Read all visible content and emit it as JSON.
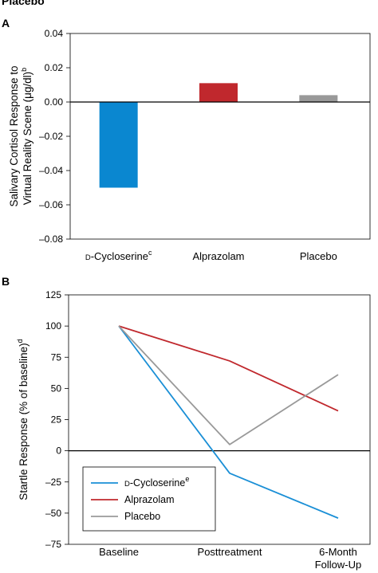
{
  "cropped_header": "Placebo",
  "chart_data": [
    {
      "type": "bar",
      "panel": "A",
      "categories": [
        {
          "label": "D-Cycloserine",
          "note": "c",
          "smallcap_prefix": "D",
          "rest": "-Cycloserine"
        },
        {
          "label": "Alprazolam",
          "note": "",
          "smallcap_prefix": "",
          "rest": "Alprazolam"
        },
        {
          "label": "Placebo",
          "note": "",
          "smallcap_prefix": "",
          "rest": "Placebo"
        }
      ],
      "values": [
        -0.05,
        0.011,
        0.004
      ],
      "colors": [
        "#0a87d0",
        "#c0282d",
        "#999999"
      ],
      "ylabel_line1": "Salivary Cortisol Response to",
      "ylabel_line2": "Virtual Reality Scene (μg/dl)",
      "ylabel_sup": "b",
      "ylim": [
        -0.08,
        0.04
      ],
      "yticks": [
        0.04,
        0.02,
        0.0,
        -0.02,
        -0.04,
        -0.06,
        -0.08
      ],
      "ytick_labels": [
        "0.04",
        "0.02",
        "0.00",
        "–0.02",
        "–0.04",
        "–0.06",
        "–0.08"
      ],
      "grid": false,
      "zero_line": true
    },
    {
      "type": "line",
      "panel": "B",
      "x": [
        "Baseline",
        "Posttreatment",
        "6-Month Follow-Up"
      ],
      "x_label_lines": [
        [
          "Baseline"
        ],
        [
          "Posttreatment"
        ],
        [
          "6-Month",
          "Follow-Up"
        ]
      ],
      "series": [
        {
          "name": "D-Cycloserine",
          "smallcap_prefix": "D",
          "rest": "-Cycloserine",
          "note": "e",
          "color": "#1a8fd6",
          "values": [
            100,
            -18,
            -54
          ]
        },
        {
          "name": "Alprazolam",
          "smallcap_prefix": "",
          "rest": "Alprazolam",
          "note": "",
          "color": "#c0282d",
          "values": [
            100,
            72,
            32
          ]
        },
        {
          "name": "Placebo",
          "smallcap_prefix": "",
          "rest": "Placebo",
          "note": "",
          "color": "#999999",
          "values": [
            100,
            5,
            61
          ]
        }
      ],
      "ylabel": "Startle Response (% of baseline)",
      "ylabel_sup": "d",
      "ylim": [
        -75,
        125
      ],
      "yticks": [
        125,
        100,
        75,
        50,
        25,
        0,
        -25,
        -50,
        -75
      ],
      "ytick_labels": [
        "125",
        "100",
        "75",
        "50",
        "25",
        "0",
        "–25",
        "–50",
        "–75"
      ],
      "grid": false,
      "zero_line": true,
      "legend_position": "bottom-left"
    }
  ]
}
